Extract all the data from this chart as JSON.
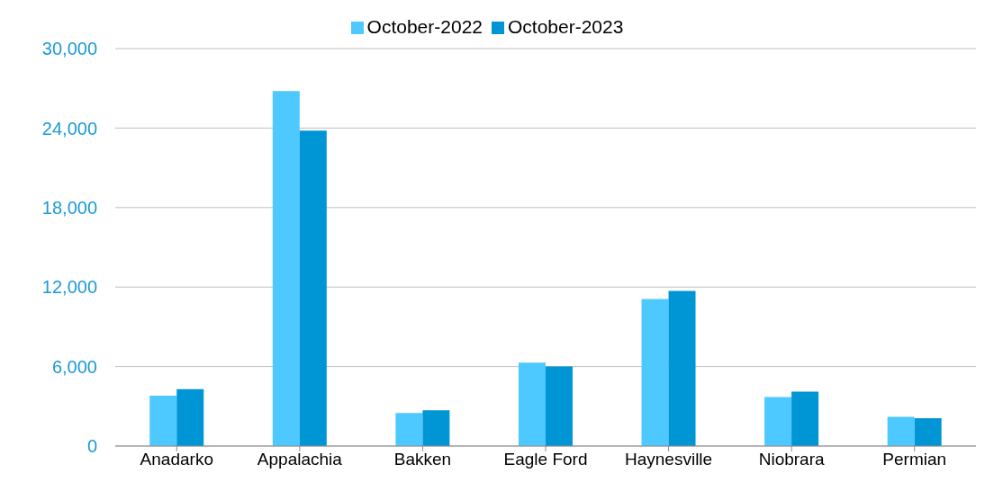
{
  "chart_data": {
    "type": "bar",
    "categories": [
      "Anadarko",
      "Appalachia",
      "Bakken",
      "Eagle Ford",
      "Haynesville",
      "Niobrara",
      "Permian"
    ],
    "series": [
      {
        "name": "October-2022",
        "color": "#4dc9ff",
        "values": [
          3800,
          26800,
          2500,
          6300,
          11100,
          3700,
          2200
        ]
      },
      {
        "name": "October-2023",
        "color": "#0096d6",
        "values": [
          4300,
          23800,
          2700,
          6000,
          11700,
          4100,
          2100
        ]
      }
    ],
    "ylim": [
      0,
      30000
    ],
    "yticks": [
      {
        "value": 0,
        "label": "0"
      },
      {
        "value": 6000,
        "label": "6,000"
      },
      {
        "value": 12000,
        "label": "12,000"
      },
      {
        "value": 18000,
        "label": "18,000"
      },
      {
        "value": 24000,
        "label": "24,000"
      },
      {
        "value": 30000,
        "label": "30,000"
      }
    ],
    "grid": "y",
    "legend": "top"
  }
}
